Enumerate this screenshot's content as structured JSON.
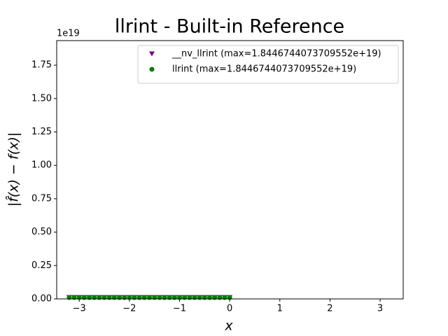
{
  "chart_data": {
    "type": "scatter",
    "title": "llrint - Built-in Reference",
    "x_label": "x",
    "y_label": "|f̂(x) − f(x)|",
    "y_offset_label": "1e19",
    "x": [
      -3.2,
      -3.1,
      -3.0,
      -2.9,
      -2.8,
      -2.7,
      -2.6,
      -2.5,
      -2.4,
      -2.3,
      -2.2,
      -2.1,
      -2.0,
      -1.9,
      -1.8,
      -1.7,
      -1.6,
      -1.5,
      -1.4,
      -1.3,
      -1.2,
      -1.1,
      -1.0,
      -0.9,
      -0.8,
      -0.7,
      -0.6,
      -0.5,
      -0.4,
      -0.3,
      -0.2,
      -0.1,
      0.0
    ],
    "series": [
      {
        "name": "__nv_llrint (max=1.8446744073709552e+19)",
        "color": "#800080",
        "marker": "triangle-down",
        "values": [
          0,
          0,
          0,
          0,
          0,
          0,
          0,
          0,
          0,
          0,
          0,
          0,
          0,
          0,
          0,
          0,
          0,
          0,
          0,
          0,
          0,
          0,
          0,
          0,
          0,
          0,
          0,
          0,
          0,
          0,
          0,
          0,
          0
        ]
      },
      {
        "name": "llrint (max=1.8446744073709552e+19)",
        "color": "#008000",
        "marker": "circle",
        "values": [
          0,
          0,
          0,
          0,
          0,
          0,
          0,
          0,
          0,
          0,
          0,
          0,
          0,
          0,
          0,
          0,
          0,
          0,
          0,
          0,
          0,
          0,
          0,
          0,
          0,
          0,
          0,
          0,
          0,
          0,
          0,
          0,
          0
        ]
      }
    ],
    "xlim": [
      -3.45,
      3.46
    ],
    "xticks": [
      {
        "value": -3,
        "label": "−3"
      },
      {
        "value": -2,
        "label": "−2"
      },
      {
        "value": -1,
        "label": "−1"
      },
      0,
      1,
      2,
      3
    ],
    "ylim": [
      0,
      1.934e+19
    ],
    "yticks": [
      {
        "value": 0,
        "label": "0.00"
      },
      {
        "value": 2.5e+18,
        "label": "0.25"
      },
      {
        "value": 5e+18,
        "label": "0.50"
      },
      {
        "value": 7.5e+18,
        "label": "0.75"
      },
      {
        "value": 1e+19,
        "label": "1.00"
      },
      {
        "value": 1.25e+19,
        "label": "1.25"
      },
      {
        "value": 1.5e+19,
        "label": "1.50"
      },
      {
        "value": 1.75e+19,
        "label": "1.75"
      }
    ],
    "legend": "upper right",
    "grid": false
  }
}
